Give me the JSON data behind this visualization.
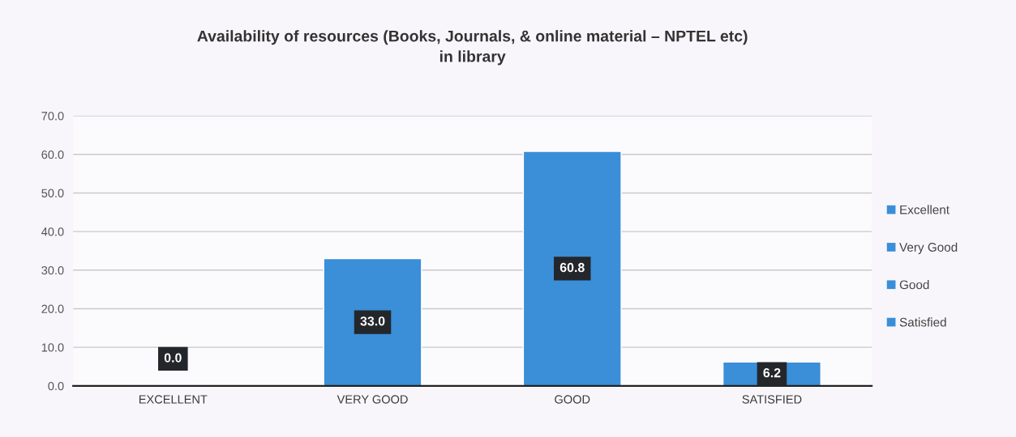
{
  "chart_data": {
    "type": "bar",
    "title": "Availability of resources (Books, Journals, & online material – NPTEL etc)\nin library",
    "categories": [
      "EXCELLENT",
      "VERY GOOD",
      "GOOD",
      "SATISFIED"
    ],
    "series": [
      {
        "name": "Excellent",
        "color": "#3b8ed8",
        "values": [
          0,
          null,
          null,
          null
        ],
        "value_labels": [
          "0.0",
          null,
          null,
          null
        ]
      },
      {
        "name": "Very Good",
        "color": "#3b8ed8",
        "values": [
          null,
          33,
          null,
          null
        ],
        "value_labels": [
          null,
          "33.0",
          null,
          null
        ]
      },
      {
        "name": "Good",
        "color": "#3b8ed8",
        "values": [
          null,
          null,
          60.8,
          null
        ],
        "value_labels": [
          null,
          null,
          "60.8",
          null
        ]
      },
      {
        "name": "Satisfied",
        "color": "#3b8ed8",
        "values": [
          null,
          null,
          null,
          6.2
        ],
        "value_labels": [
          null,
          null,
          null,
          "6.2"
        ]
      }
    ],
    "ylim": [
      0,
      70
    ],
    "yticks": [
      {
        "value": 0,
        "label": "0.0"
      },
      {
        "value": 10,
        "label": "10.0"
      },
      {
        "value": 20,
        "label": "20.0"
      },
      {
        "value": 30,
        "label": "30.0"
      },
      {
        "value": 40,
        "label": "40.0"
      },
      {
        "value": 50,
        "label": "50.0"
      },
      {
        "value": 60,
        "label": "60.0"
      },
      {
        "value": 70,
        "label": "70.0"
      }
    ],
    "grid": "y",
    "legend": "right"
  }
}
